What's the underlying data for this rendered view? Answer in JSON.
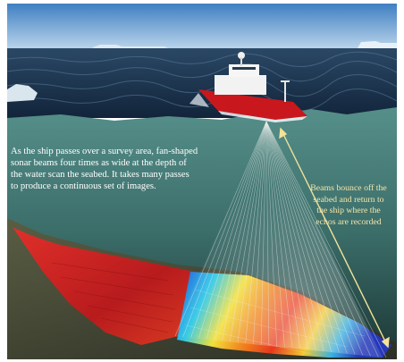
{
  "captions": {
    "left": "As the ship passes over a survey area, fan-shaped\nsonar beams four times as wide at the depth of\nthe water scan the seabed. It takes many passes\nto produce a continuous set of images.",
    "right": "Beams bounce off the\nseabed and return to\nthe ship where the\nechos are recorded"
  },
  "colors": {
    "sky_top": "#3f7fc2",
    "sky_bottom": "#a9c8e6",
    "sea_surface": "#1b3047",
    "water_top": "#4f8a86",
    "water_bottom": "#21403f",
    "ship_hull": "#c8181e",
    "ship_superstructure": "#f2f2f2",
    "arrow": "#f2e29a",
    "beam": "#e8ece8"
  }
}
